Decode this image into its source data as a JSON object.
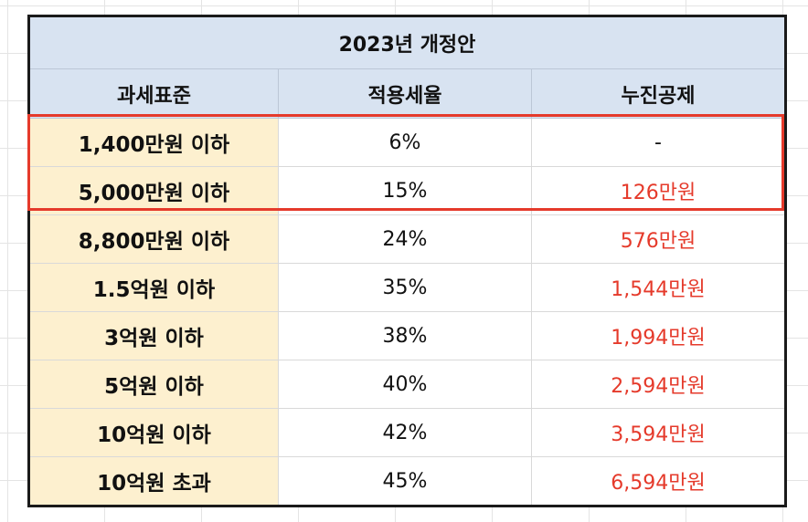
{
  "table": {
    "title": "2023년 개정안",
    "headers": [
      "과세표준",
      "적용세율",
      "누진공제"
    ],
    "rows": [
      {
        "bracket": "1,400만원 이하",
        "rate": "6%",
        "deduction": "-"
      },
      {
        "bracket": "5,000만원 이하",
        "rate": "15%",
        "deduction": "126만원"
      },
      {
        "bracket": "8,800만원 이하",
        "rate": "24%",
        "deduction": "576만원"
      },
      {
        "bracket": "1.5억원 이하",
        "rate": "35%",
        "deduction": "1,544만원"
      },
      {
        "bracket": "3억원 이하",
        "rate": "38%",
        "deduction": "1,994만원"
      },
      {
        "bracket": "5억원 이하",
        "rate": "40%",
        "deduction": "2,594만원"
      },
      {
        "bracket": "10억원 이하",
        "rate": "42%",
        "deduction": "3,594만원"
      },
      {
        "bracket": "10억원 초과",
        "rate": "45%",
        "deduction": "6,594만원"
      }
    ]
  },
  "colors": {
    "header_bg": "#d8e3f1",
    "bracket_bg": "#fdf0cf",
    "deduction_text": "#e53a2b",
    "highlight_border": "#e53a2b",
    "table_border": "#1a1a1a"
  }
}
